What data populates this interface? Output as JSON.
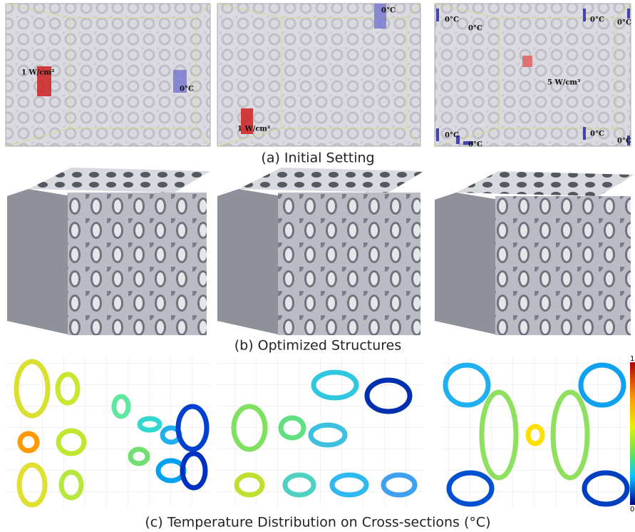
{
  "rows": [
    {
      "caption": "(a) Initial Setting",
      "panels": [
        {
          "labels": [
            "1 W/cm²",
            "0°C"
          ]
        },
        {
          "labels": [
            "0°C",
            "1 W/cm²"
          ]
        },
        {
          "labels": [
            "0°C",
            "0°C",
            "0°C",
            "0°C",
            "0°C",
            "0°C",
            "0°C",
            "0°C",
            "5 W/cm³"
          ]
        }
      ]
    },
    {
      "caption": "(b) Optimized Structures"
    },
    {
      "caption": "(c) Temperature Distribution on Cross-sections (°C)"
    }
  ],
  "colorbar": {
    "max": "1",
    "min": "0"
  }
}
